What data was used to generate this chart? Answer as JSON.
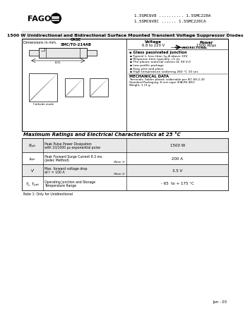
{
  "title_line1": "1.5SMC6V8 .......... 1.5SMC220A",
  "title_line2": "1.5SMC6V8C ...... 1.5SMC220CA",
  "main_title": "1500 W Unidirectional and Bidirectional Surface Mounted Transient Voltage Suppressor Diodes",
  "company": "FAGOR",
  "case_label": "CASE\nSMC/TO-214AB",
  "voltage_label": "Voltage\n6.8 to 220 V",
  "power_label": "Power\n1500 W/μs",
  "features_title": "Glass passivated junction",
  "features": [
    "Typical Iₘ less than 1μ A above 10V",
    "Response time typically <1 ns",
    "The plastic material carries UL 94 V-0",
    "Low profile package",
    "Easy pick and place",
    "High temperature soldering 260 °C 10 sec"
  ],
  "mech_title": "MECHANICAL DATA",
  "mech_text": "Terminals: Solder plated, solderable per IEC 68-2-20\nStandard Packaging: 8 mm tape (EIA-RS 481)\nWeight: 1.11 g",
  "table_title": "Maximum Ratings and Electrical Characteristics at 25 °C",
  "rows": [
    {
      "sym": "Pₚₚₖ",
      "sym2": "",
      "desc": "Peak Pulse Power Dissipation\nwith 10/1000 μs exponential pulse",
      "note": "",
      "value": "1500 W"
    },
    {
      "sym": "Iₚₚₖ",
      "sym2": "",
      "desc": "Peak Forward Surge Current 8.3 ms.\n(Jedec Method)",
      "note": "(Note 1)",
      "value": "200 A"
    },
    {
      "sym": "Vⁱ",
      "sym2": "",
      "desc": "Max. forward voltage drop\nat Iⁱ = 100 A",
      "note": "(Note 1)",
      "value": "3.5 V"
    },
    {
      "sym": "Tⱼ, Tₚₚₖ",
      "sym2": "",
      "desc": "Operating Junction and Storage\nTemperature Range",
      "note": "",
      "value": "- 65  to + 175 °C"
    }
  ],
  "note": "Note 1: Only for Unidirectional",
  "date": "Jun - 03",
  "white": "#ffffff",
  "black": "#000000",
  "light_gray": "#e8e8e8",
  "mid_gray": "#cccccc",
  "dark_gray": "#888888"
}
